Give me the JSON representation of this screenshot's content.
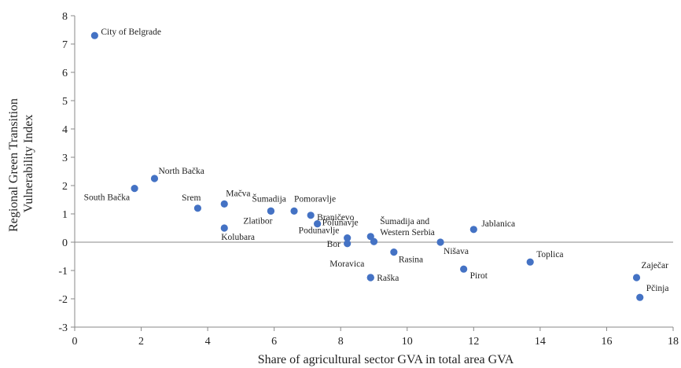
{
  "chart_data": {
    "type": "scatter",
    "title": "",
    "xlabel": "Share of agricultural sector GVA in total area GVA",
    "ylabel_lines": [
      "Regional Green Transition",
      "Vulnerability Index"
    ],
    "xlim": [
      0,
      18
    ],
    "ylim": [
      -3,
      8
    ],
    "xticks": [
      0,
      2,
      4,
      6,
      8,
      10,
      12,
      14,
      16,
      18
    ],
    "yticks": [
      -3,
      -2,
      -1,
      0,
      1,
      2,
      3,
      4,
      5,
      6,
      7,
      8
    ],
    "grid": false,
    "marker_color": "#4472c4",
    "points": [
      {
        "label": "City of Belgrade",
        "x": 0.6,
        "y": 7.3
      },
      {
        "label": "South Bačka",
        "x": 1.8,
        "y": 1.9
      },
      {
        "label": "North Bačka",
        "x": 2.4,
        "y": 2.25
      },
      {
        "label": "Srem",
        "x": 3.7,
        "y": 1.2
      },
      {
        "label": "Mačva",
        "x": 4.5,
        "y": 1.35
      },
      {
        "label": "Kolubara",
        "x": 4.5,
        "y": 0.5
      },
      {
        "label": "Zlatibor",
        "x": 5.9,
        "y": 1.1
      },
      {
        "label": "Šumadija",
        "x": 5.9,
        "y": 1.1
      },
      {
        "label": "Pomoravlje",
        "x": 6.6,
        "y": 1.1
      },
      {
        "label": "Braničevo",
        "x": 7.1,
        "y": 0.95
      },
      {
        "label": "Poluńavje",
        "x": 7.3,
        "y": 0.65
      },
      {
        "label": "Podunavlje",
        "x": 8.2,
        "y": 0.15
      },
      {
        "label": "Bor",
        "x": 8.2,
        "y": -0.05
      },
      {
        "label": "Šumadija and Western Serbia",
        "x": 8.9,
        "y": 0.2
      },
      {
        "label": "",
        "x": 9.0,
        "y": 0.02
      },
      {
        "label": "Moravica",
        "x": 8.9,
        "y": -1.25
      },
      {
        "label": "Raška",
        "x": 8.9,
        "y": -1.25
      },
      {
        "label": "Rasina",
        "x": 9.6,
        "y": -0.35
      },
      {
        "label": "Nišava",
        "x": 11.0,
        "y": 0.0
      },
      {
        "label": "Jablanica",
        "x": 12.0,
        "y": 0.45
      },
      {
        "label": "Pirot",
        "x": 11.7,
        "y": -0.95
      },
      {
        "label": "Toplica",
        "x": 13.7,
        "y": -0.7
      },
      {
        "label": "Zaječar",
        "x": 16.9,
        "y": -1.25
      },
      {
        "label": "Pčinja",
        "x": 17.0,
        "y": -1.95
      }
    ]
  }
}
